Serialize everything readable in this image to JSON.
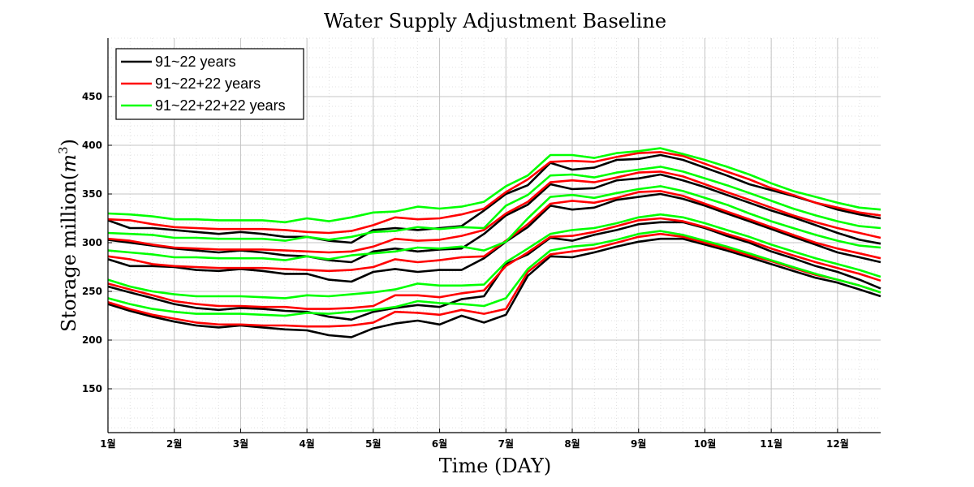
{
  "chart_data": {
    "type": "line",
    "title": "Water Supply Adjustment Baseline",
    "xlabel": "Time (DAY)",
    "ylabel_text": "Storage million(",
    "ylabel_unit": "m",
    "ylabel_exp": "3",
    "ylabel_close": ")",
    "xlim": [
      1,
      12.65
    ],
    "ylim": [
      105,
      510
    ],
    "x_ticks": [
      1,
      2,
      3,
      4,
      5,
      6,
      7,
      8,
      9,
      10,
      11,
      12
    ],
    "x_tick_labels": [
      "1월",
      "2월",
      "3월",
      "4월",
      "5월",
      "6월",
      "7월",
      "8월",
      "9월",
      "10월",
      "11월",
      "12월"
    ],
    "y_ticks": [
      150,
      200,
      250,
      300,
      350,
      400,
      450
    ],
    "y_tick_labels": [
      "150",
      "200",
      "250",
      "300",
      "350",
      "400",
      "450"
    ],
    "grid": true,
    "legend_position": "top-left",
    "x": [
      1,
      1.33,
      1.67,
      2,
      2.33,
      2.67,
      3,
      3.33,
      3.67,
      4,
      4.33,
      4.67,
      5,
      5.33,
      5.67,
      6,
      6.33,
      6.67,
      7,
      7.33,
      7.67,
      8,
      8.33,
      8.67,
      9,
      9.33,
      9.67,
      10,
      10.33,
      10.67,
      11,
      11.33,
      11.67,
      12,
      12.33,
      12.65
    ],
    "series": [
      {
        "name": "91~22 years",
        "color": "#000000",
        "values": [
          323,
          315,
          315,
          313,
          311,
          309,
          311,
          309,
          306,
          306,
          302,
          300,
          313,
          315,
          313,
          315,
          317,
          333,
          350,
          359,
          382,
          375,
          377,
          385,
          386,
          390,
          385,
          377,
          369,
          360,
          354,
          348,
          341,
          334,
          329,
          325
        ]
      },
      {
        "name": "",
        "color": "#000000",
        "values": [
          303,
          300,
          297,
          294,
          292,
          290,
          292,
          290,
          287,
          286,
          282,
          280,
          291,
          294,
          291,
          293,
          294,
          309,
          328,
          339,
          360,
          355,
          356,
          364,
          366,
          370,
          364,
          357,
          349,
          341,
          333,
          326,
          318,
          310,
          303,
          299
        ]
      },
      {
        "name": "",
        "color": "#000000",
        "values": [
          283,
          276,
          276,
          275,
          272,
          271,
          273,
          271,
          268,
          268,
          262,
          260,
          270,
          273,
          270,
          272,
          272,
          284,
          301,
          316,
          338,
          334,
          336,
          344,
          347,
          350,
          345,
          338,
          330,
          322,
          314,
          306,
          298,
          290,
          285,
          280
        ]
      },
      {
        "name": "",
        "color": "#000000",
        "values": [
          255,
          249,
          243,
          237,
          233,
          231,
          233,
          232,
          230,
          229,
          224,
          221,
          229,
          233,
          236,
          234,
          242,
          245,
          278,
          288,
          305,
          302,
          308,
          313,
          319,
          321,
          321,
          315,
          307,
          300,
          291,
          284,
          276,
          270,
          262,
          253
        ]
      },
      {
        "name": "",
        "color": "#000000",
        "values": [
          237,
          230,
          224,
          219,
          215,
          213,
          215,
          213,
          211,
          210,
          205,
          203,
          212,
          217,
          220,
          216,
          225,
          218,
          226,
          266,
          286,
          285,
          290,
          296,
          301,
          304,
          304,
          298,
          292,
          285,
          278,
          271,
          264,
          259,
          252,
          245
        ]
      },
      {
        "name": "91~22+22 years",
        "color": "#ff0000",
        "values": [
          324,
          323,
          319,
          316,
          315,
          314,
          314,
          314,
          313,
          311,
          310,
          312,
          318,
          326,
          324,
          325,
          329,
          335,
          352,
          365,
          383,
          384,
          383,
          388,
          392,
          393,
          389,
          381,
          373,
          365,
          356,
          349,
          341,
          336,
          331,
          328
        ]
      },
      {
        "name": "",
        "color": "#ff0000",
        "values": [
          304,
          302,
          298,
          295,
          294,
          293,
          293,
          293,
          292,
          291,
          290,
          291,
          296,
          304,
          302,
          303,
          307,
          313,
          330,
          342,
          362,
          364,
          362,
          367,
          372,
          373,
          368,
          360,
          352,
          344,
          336,
          328,
          321,
          315,
          310,
          305
        ]
      },
      {
        "name": "",
        "color": "#ff0000",
        "values": [
          286,
          283,
          278,
          276,
          275,
          274,
          274,
          274,
          273,
          272,
          271,
          272,
          275,
          283,
          280,
          282,
          285,
          286,
          302,
          319,
          340,
          343,
          341,
          346,
          352,
          353,
          348,
          340,
          332,
          324,
          316,
          308,
          300,
          294,
          289,
          284
        ]
      },
      {
        "name": "",
        "color": "#ff0000",
        "values": [
          258,
          252,
          246,
          240,
          237,
          235,
          235,
          234,
          234,
          232,
          232,
          233,
          235,
          246,
          246,
          244,
          248,
          251,
          276,
          290,
          306,
          307,
          311,
          317,
          323,
          325,
          322,
          316,
          309,
          302,
          294,
          287,
          280,
          274,
          268,
          261
        ]
      },
      {
        "name": "",
        "color": "#ff0000",
        "values": [
          239,
          232,
          226,
          222,
          218,
          216,
          216,
          215,
          215,
          214,
          214,
          215,
          218,
          229,
          228,
          226,
          231,
          227,
          232,
          270,
          288,
          291,
          294,
          300,
          306,
          309,
          306,
          300,
          294,
          287,
          281,
          274,
          267,
          262,
          256,
          249
        ]
      },
      {
        "name": "91~22+22+22 years",
        "color": "#00ff00",
        "values": [
          330,
          329,
          327,
          324,
          324,
          323,
          323,
          323,
          321,
          325,
          322,
          326,
          331,
          332,
          337,
          335,
          337,
          342,
          358,
          369,
          390,
          390,
          387,
          392,
          394,
          397,
          391,
          385,
          378,
          370,
          361,
          353,
          347,
          341,
          336,
          334
        ]
      },
      {
        "name": "",
        "color": "#00ff00",
        "values": [
          310,
          309,
          308,
          305,
          305,
          304,
          304,
          304,
          302,
          306,
          303,
          306,
          311,
          312,
          316,
          314,
          316,
          315,
          338,
          349,
          369,
          370,
          367,
          372,
          375,
          378,
          373,
          366,
          359,
          351,
          343,
          335,
          328,
          322,
          317,
          315
        ]
      },
      {
        "name": "",
        "color": "#00ff00",
        "values": [
          292,
          290,
          288,
          285,
          285,
          284,
          284,
          284,
          282,
          286,
          283,
          287,
          289,
          291,
          295,
          294,
          296,
          292,
          301,
          325,
          347,
          349,
          346,
          351,
          355,
          358,
          353,
          346,
          339,
          330,
          322,
          315,
          308,
          302,
          297,
          295
        ]
      },
      {
        "name": "",
        "color": "#00ff00",
        "values": [
          262,
          255,
          250,
          247,
          245,
          245,
          245,
          244,
          243,
          246,
          245,
          247,
          249,
          252,
          258,
          256,
          256,
          257,
          280,
          294,
          309,
          313,
          315,
          320,
          326,
          329,
          326,
          320,
          313,
          306,
          298,
          291,
          284,
          278,
          272,
          265
        ]
      },
      {
        "name": "",
        "color": "#00ff00",
        "values": [
          243,
          237,
          232,
          229,
          227,
          227,
          227,
          226,
          225,
          228,
          227,
          229,
          231,
          234,
          240,
          238,
          237,
          235,
          243,
          273,
          292,
          296,
          298,
          303,
          309,
          312,
          308,
          302,
          296,
          289,
          282,
          275,
          268,
          262,
          256,
          249
        ]
      }
    ]
  }
}
